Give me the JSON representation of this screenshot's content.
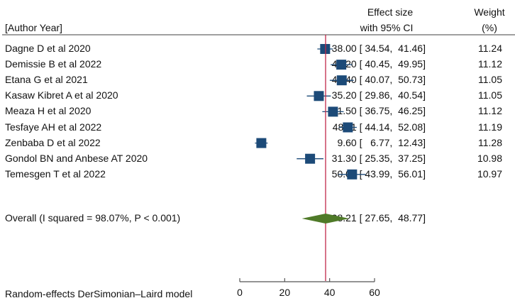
{
  "chart_data": {
    "type": "forest",
    "header": {
      "study_col": "[Author Year]",
      "effect_col_line1": "Effect size",
      "effect_col_line2": "with 95% CI",
      "weight_col_line1": "Weight",
      "weight_col_line2": "(%)"
    },
    "studies": [
      {
        "label": "Dagne D et al 2020",
        "es": 38.0,
        "lo": 34.54,
        "hi": 41.46,
        "ci_text": "38.00 [ 34.54,  41.46]",
        "weight": "11.24"
      },
      {
        "label": "Demissie B et al 2022",
        "es": 45.2,
        "lo": 40.45,
        "hi": 49.95,
        "ci_text": "45.20 [ 40.45,  49.95]",
        "weight": "11.12"
      },
      {
        "label": "Etana G et al 2021",
        "es": 45.4,
        "lo": 40.07,
        "hi": 50.73,
        "ci_text": "45.40 [ 40.07,  50.73]",
        "weight": "11.05"
      },
      {
        "label": "Kasaw Kibret A et al 2020",
        "es": 35.2,
        "lo": 29.86,
        "hi": 40.54,
        "ci_text": "35.20 [ 29.86,  40.54]",
        "weight": "11.05"
      },
      {
        "label": "Meaza H et al 2020",
        "es": 41.5,
        "lo": 36.75,
        "hi": 46.25,
        "ci_text": "41.50 [ 36.75,  46.25]",
        "weight": "11.12"
      },
      {
        "label": "Tesfaye AH et al 2022",
        "es": 48.11,
        "lo": 44.14,
        "hi": 52.08,
        "ci_text": "48.11 [ 44.14,  52.08]",
        "weight": "11.19"
      },
      {
        "label": "Zenbaba D et al 2022",
        "es": 9.6,
        "lo": 6.77,
        "hi": 12.43,
        "ci_text": "9.60 [   6.77,  12.43]",
        "weight": "11.28"
      },
      {
        "label": "Gondol BN and Anbese AT 2020",
        "es": 31.3,
        "lo": 25.35,
        "hi": 37.25,
        "ci_text": "31.30 [ 25.35,  37.25]",
        "weight": "10.98"
      },
      {
        "label": "Temesgen T et al 2022",
        "es": 50.0,
        "lo": 43.99,
        "hi": 56.01,
        "ci_text": "50.00 [ 43.99,  56.01]",
        "weight": "10.97"
      }
    ],
    "overall": {
      "label": "Overall (I squared = 98.07%, P < 0.001)",
      "es": 38.21,
      "lo": 27.65,
      "hi": 48.77,
      "ci_text": "38.21 [ 27.65,  48.77]"
    },
    "xaxis": {
      "min": 0,
      "max": 60,
      "ticks": [
        "0",
        "20",
        "40",
        "60"
      ]
    },
    "footnote": "Random-effects DerSimonian–Laird model",
    "colors": {
      "marker": "#1c4a78",
      "diamond": "#4f7a28",
      "ref_line": "#c0284a",
      "axis": "#555555"
    }
  }
}
